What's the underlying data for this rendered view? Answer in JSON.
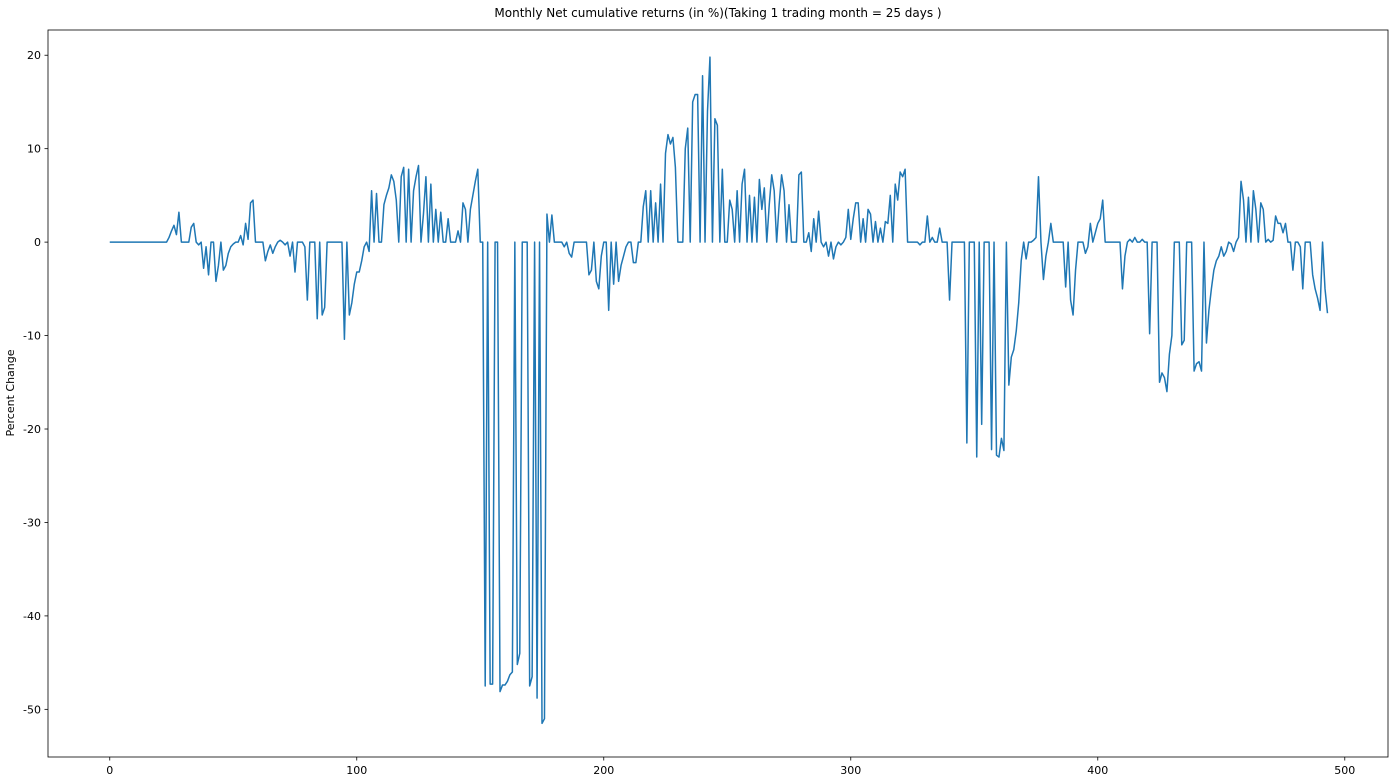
{
  "chart_data": {
    "type": "line",
    "title": "Monthly Net cumulative returns (in %)(Taking 1 trading month = 25 days )",
    "y_label": "Percent Change",
    "xlim": [
      -25,
      517.5
    ],
    "ylim": [
      -55.1,
      22.7
    ],
    "xticks": [
      0,
      100,
      200,
      300,
      400,
      500
    ],
    "yticks": [
      -50,
      -40,
      -30,
      -20,
      -10,
      0,
      10,
      20
    ],
    "grid": false,
    "series": [
      {
        "color": "#1f77b4",
        "values": [
          0,
          0,
          0,
          0,
          0,
          0,
          0,
          0,
          0,
          0,
          0,
          0,
          0,
          0,
          0,
          0,
          0,
          0,
          0,
          0,
          0,
          0,
          0,
          0,
          0.5,
          1.2,
          1.8,
          0.8,
          3.2,
          0,
          0,
          0,
          0,
          1.6,
          2.0,
          0,
          -0.3,
          0,
          -2.8,
          -0.5,
          -3.5,
          0,
          0,
          -4.2,
          -2.5,
          0,
          -3.0,
          -2.5,
          -1.2,
          -0.5,
          -0.2,
          0,
          0,
          0.7,
          -0.3,
          2.0,
          0.3,
          4.2,
          4.5,
          0,
          0,
          0,
          0,
          -2.0,
          -1.0,
          -0.3,
          -1.2,
          -0.5,
          0,
          0.2,
          0,
          -0.3,
          0,
          -1.5,
          0,
          -3.2,
          0,
          0,
          0,
          -0.5,
          -6.2,
          0,
          0,
          0,
          -8.2,
          0,
          -7.8,
          -7.0,
          0,
          0,
          0,
          0,
          0,
          0,
          0,
          -10.4,
          0,
          -7.8,
          -6.5,
          -4.5,
          -3.2,
          -3.2,
          -2.0,
          -0.5,
          0,
          -1.0,
          5.5,
          0,
          5.2,
          0,
          0,
          4.0,
          5.0,
          5.8,
          7.2,
          6.5,
          4.5,
          0,
          7.0,
          8.0,
          0,
          7.8,
          0,
          5.5,
          7.0,
          8.2,
          0,
          3.0,
          7.0,
          0,
          6.2,
          0,
          3.5,
          0,
          3.2,
          0,
          0,
          2.5,
          0,
          0,
          0,
          1.2,
          0,
          4.2,
          3.5,
          0,
          3.5,
          5.0,
          6.5,
          7.8,
          0,
          0,
          -47.5,
          0,
          -47.3,
          -47.3,
          0,
          0,
          -48.1,
          -47.4,
          -47.4,
          -47.0,
          -46.3,
          -46.0,
          0,
          -45.2,
          -44.0,
          0,
          0,
          0,
          -47.5,
          -46.5,
          0,
          -48.8,
          0,
          -51.5,
          -51.0,
          3.0,
          0,
          2.9,
          0,
          0,
          0,
          0,
          -0.5,
          0,
          -1.2,
          -1.6,
          0,
          0,
          0,
          0,
          0,
          0,
          -3.5,
          -3.0,
          0,
          -4.2,
          -5.0,
          -1.5,
          0,
          0,
          -7.3,
          0,
          -4.5,
          0,
          -4.2,
          -2.5,
          -1.5,
          -0.5,
          0,
          0,
          -2.2,
          -2.2,
          0,
          0,
          3.8,
          5.5,
          0,
          5.5,
          0,
          4.2,
          0,
          6.2,
          0,
          9.5,
          11.5,
          10.5,
          11.2,
          8.0,
          0,
          0,
          0,
          10.0,
          12.2,
          0,
          15.0,
          15.8,
          15.8,
          0,
          17.8,
          0,
          14.0,
          19.8,
          0,
          13.2,
          12.5,
          0,
          7.8,
          0,
          0,
          4.5,
          3.5,
          0,
          5.5,
          0,
          6.2,
          7.8,
          0,
          5.0,
          0,
          4.8,
          0,
          6.7,
          3.5,
          5.8,
          0,
          4.0,
          7.2,
          5.5,
          0,
          4.0,
          7.2,
          5.5,
          0,
          4.0,
          0,
          0,
          0,
          7.2,
          7.5,
          0,
          0,
          1.0,
          -1.0,
          2.5,
          0,
          3.3,
          0,
          -0.5,
          0,
          -1.5,
          0,
          -1.8,
          -0.5,
          0,
          -0.3,
          0,
          0.5,
          3.5,
          0.3,
          2.5,
          4.2,
          4.2,
          0,
          2.5,
          0,
          3.5,
          3.0,
          0,
          2.2,
          0,
          1.5,
          0,
          2.2,
          2.0,
          5.0,
          0,
          6.2,
          4.5,
          7.5,
          7.0,
          7.8,
          0,
          0,
          0,
          0,
          0,
          -0.3,
          0,
          0,
          2.8,
          0,
          0.5,
          0,
          0,
          1.5,
          0,
          0,
          0,
          -6.2,
          0,
          0,
          0,
          0,
          0,
          0,
          -21.5,
          0,
          0,
          0,
          -23.0,
          0,
          -19.5,
          0,
          0,
          0,
          -22.2,
          0,
          -22.8,
          -23.0,
          -21.0,
          -22.3,
          0,
          -15.3,
          -12.3,
          -11.5,
          -9.5,
          -6.5,
          -2.0,
          0,
          -1.8,
          0,
          0,
          0.2,
          0.5,
          7.0,
          0,
          -4.0,
          -1.5,
          0,
          2.0,
          0,
          0,
          0,
          0,
          0,
          -4.8,
          0,
          -6.2,
          -7.8,
          -3.0,
          0,
          0,
          0,
          -1.2,
          -0.5,
          2.0,
          0,
          1.0,
          2.0,
          2.5,
          4.5,
          0,
          0,
          0,
          0,
          0,
          0,
          0,
          -5.0,
          -1.5,
          0,
          0.3,
          0,
          0.5,
          0,
          0,
          0.3,
          0,
          0,
          -9.8,
          0,
          0,
          0,
          -15.0,
          -14.0,
          -14.5,
          -16.0,
          -12.0,
          -10.0,
          0,
          0,
          0,
          -11.0,
          -10.5,
          0,
          0,
          0,
          -13.8,
          -13.0,
          -12.8,
          -13.8,
          0,
          -10.8,
          -7.3,
          -5.0,
          -3.0,
          -2.0,
          -1.5,
          -0.5,
          -1.5,
          -1.0,
          0,
          -0.2,
          -1.0,
          0,
          0.5,
          6.5,
          4.5,
          0,
          4.8,
          0,
          5.5,
          3.5,
          0,
          4.2,
          3.5,
          0,
          0.3,
          0,
          0.2,
          2.8,
          2.0,
          2.0,
          1.0,
          2.0,
          0,
          0,
          -3.0,
          0,
          0,
          -0.5,
          -5.0,
          0,
          0,
          0,
          -3.5,
          -5.0,
          -6.0,
          -7.3,
          0,
          -5.0,
          -7.6
        ]
      }
    ]
  }
}
